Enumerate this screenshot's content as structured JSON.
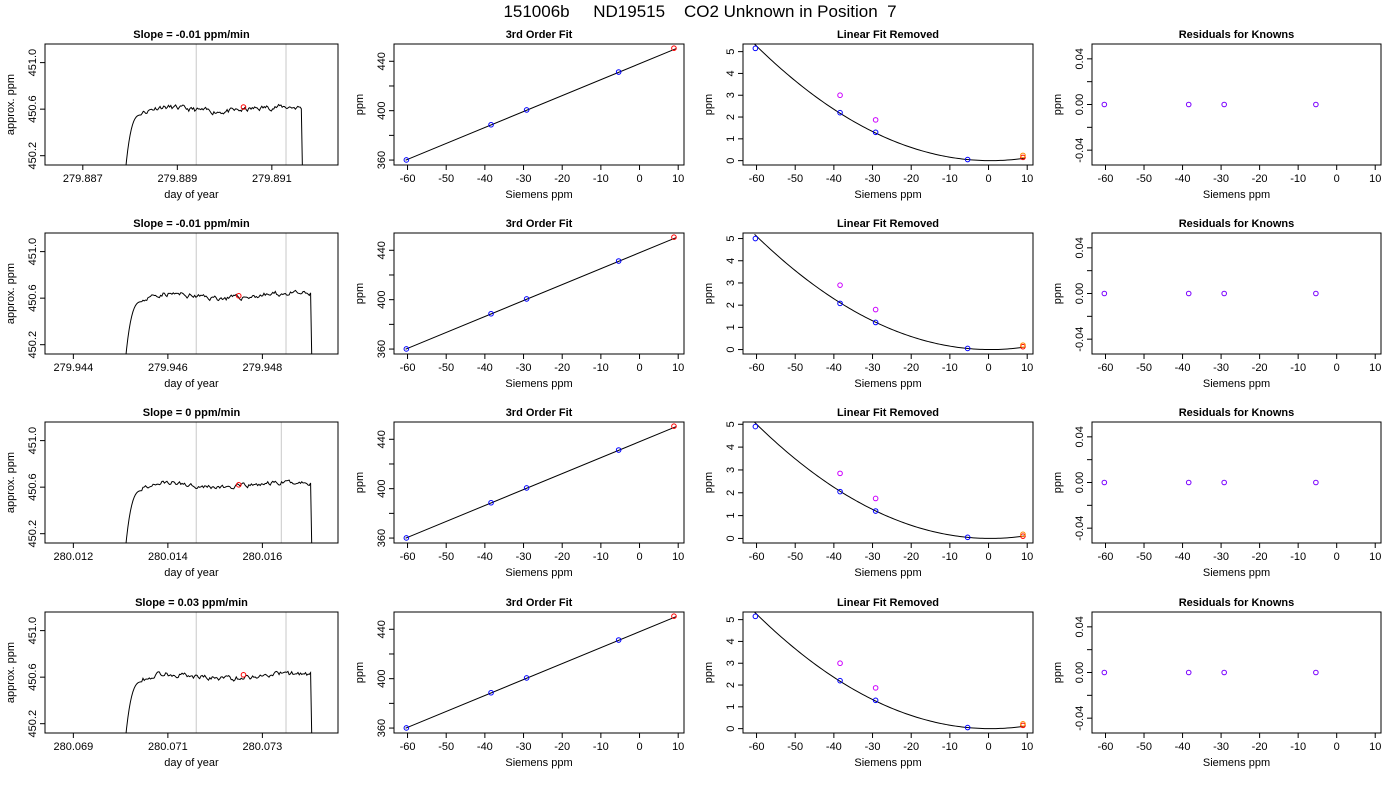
{
  "header": {
    "title": "151006b     ND19515    CO2 Unknown in Position  7"
  },
  "colors": {
    "trace": "#000000",
    "window_lines": "#c8c8c8",
    "standard_points": "#0000ff",
    "unknown_points": "#ff0000",
    "linear_removed_points": "#cc00ff",
    "unknown_linear_removed": "#ff8800",
    "residual_points": "#7a00ff"
  },
  "chart_data": [
    {
      "type": "line",
      "panel": "trace",
      "row": 1,
      "title": "Slope =  -0.01  ppm/min",
      "xlabel": "day of year",
      "ylabel": "approx. ppm",
      "xlim": [
        279.8862,
        279.8924
      ],
      "ylim": [
        450.12,
        451.16
      ],
      "xticks": [
        279.887,
        279.889,
        279.891
      ],
      "xtick_labels": [
        "279.887",
        "279.889",
        "279.891"
      ],
      "yticks": [
        450.2,
        450.6,
        451.0
      ],
      "ytick_labels": [
        "450.2",
        "450.6",
        "451.0"
      ],
      "window": [
        279.8894,
        279.8913
      ],
      "trace_start": 279.8879,
      "trace_end": 279.8917,
      "baseline": 450.6,
      "ripple": 0.024,
      "seed": 11,
      "marker": {
        "x": 279.8904,
        "y": 450.618
      }
    },
    {
      "type": "scatter",
      "panel": "fit",
      "row": 1,
      "title": "3rd Order Fit",
      "xlabel": "Siemens ppm",
      "ylabel": "ppm",
      "xlim": [
        -63.5,
        11.5
      ],
      "ylim": [
        356,
        454
      ],
      "xticks": [
        -60,
        -50,
        -40,
        -30,
        -20,
        -10,
        0,
        10
      ],
      "xtick_labels": [
        "-60",
        "-50",
        "-40",
        "-30",
        "-20",
        "-10",
        "0",
        "10"
      ],
      "yticks": [
        360,
        400,
        440
      ],
      "ytick_labels": [
        "360",
        "400",
        "440"
      ],
      "yminor": [
        380,
        420
      ],
      "line": [
        [
          -60.5,
          359.9
        ],
        [
          9.5,
          450.3
        ]
      ],
      "standards": [
        {
          "x": -60.3,
          "y": 360.1
        },
        {
          "x": -38.4,
          "y": 388.6
        },
        {
          "x": -29.2,
          "y": 400.6
        },
        {
          "x": -5.4,
          "y": 431.3
        }
      ],
      "unknown": {
        "x": 8.9,
        "y": 450.6
      }
    },
    {
      "type": "scatter",
      "panel": "linear",
      "row": 1,
      "title": "Linear Fit Removed",
      "xlabel": "Siemens ppm",
      "ylabel": "ppm",
      "xlim": [
        -63.5,
        11.5
      ],
      "ylim": [
        -0.2,
        5.35
      ],
      "xticks": [
        -60,
        -50,
        -40,
        -30,
        -20,
        -10,
        0,
        10
      ],
      "xtick_labels": [
        "-60",
        "-50",
        "-40",
        "-30",
        "-20",
        "-10",
        "0",
        "10"
      ],
      "yticks": [
        0,
        1,
        2,
        3,
        4,
        5
      ],
      "ytick_labels": [
        "0",
        "1",
        "2",
        "3",
        "4",
        "5"
      ],
      "curve_a": 0.001436,
      "curve_h": 0.5,
      "curve_min": 0,
      "standards": [
        {
          "x": -60.3,
          "y": 5.15
        },
        {
          "x": -38.4,
          "y": 2.2
        },
        {
          "x": -29.2,
          "y": 1.3
        },
        {
          "x": -5.4,
          "y": 0.05
        }
      ],
      "raw_points": [
        {
          "x": -38.4,
          "y": 3.0
        },
        {
          "x": -29.2,
          "y": 1.87
        }
      ],
      "unknown_points": [
        {
          "x": 8.9,
          "y": 0.15
        },
        {
          "x": 8.9,
          "y": 0.24
        }
      ]
    },
    {
      "type": "scatter",
      "panel": "residual",
      "row": 1,
      "title": "Residuals for Knowns",
      "xlabel": "Siemens ppm",
      "ylabel": "ppm",
      "xlim": [
        -63.5,
        11.5
      ],
      "ylim": [
        -0.053,
        0.053
      ],
      "xticks": [
        -60,
        -50,
        -40,
        -30,
        -20,
        -10,
        0,
        10
      ],
      "xtick_labels": [
        "-60",
        "-50",
        "-40",
        "-30",
        "-20",
        "-10",
        "0",
        "10"
      ],
      "yticks": [
        -0.04,
        0.0,
        0.04
      ],
      "ytick_labels": [
        "-0.04",
        "0.00",
        "0.04"
      ],
      "yminor": [
        -0.02,
        0.02
      ],
      "residuals": [
        {
          "x": -60.3,
          "y": 0.0
        },
        {
          "x": -38.4,
          "y": 0.0
        },
        {
          "x": -29.2,
          "y": 0.0
        },
        {
          "x": -5.4,
          "y": 0.0
        }
      ]
    },
    {
      "type": "line",
      "panel": "trace",
      "row": 2,
      "title": "Slope =  -0.01  ppm/min",
      "xlabel": "day of year",
      "ylabel": "approx. ppm",
      "xlim": [
        279.9434,
        279.9496
      ],
      "ylim": [
        450.12,
        451.16
      ],
      "xticks": [
        279.944,
        279.946,
        279.948
      ],
      "xtick_labels": [
        "279.944",
        "279.946",
        "279.948"
      ],
      "yticks": [
        450.2,
        450.6,
        451.0
      ],
      "ytick_labels": [
        "450.2",
        "450.6",
        "451.0"
      ],
      "window": [
        279.9466,
        279.9485
      ],
      "trace_start": 279.9451,
      "trace_end": 279.9491,
      "baseline": 450.62,
      "ripple": 0.024,
      "seed": 23,
      "marker": {
        "x": 279.9475,
        "y": 450.62
      }
    },
    {
      "type": "scatter",
      "panel": "fit",
      "row": 2,
      "title": "3rd Order Fit",
      "xlabel": "Siemens ppm",
      "ylabel": "ppm",
      "xlim": [
        -63.5,
        11.5
      ],
      "ylim": [
        356,
        454
      ],
      "xticks": [
        -60,
        -50,
        -40,
        -30,
        -20,
        -10,
        0,
        10
      ],
      "xtick_labels": [
        "-60",
        "-50",
        "-40",
        "-30",
        "-20",
        "-10",
        "0",
        "10"
      ],
      "yticks": [
        360,
        400,
        440
      ],
      "ytick_labels": [
        "360",
        "400",
        "440"
      ],
      "yminor": [
        380,
        420
      ],
      "line": [
        [
          -60.5,
          359.9
        ],
        [
          9.5,
          450.3
        ]
      ],
      "standards": [
        {
          "x": -60.3,
          "y": 360.1
        },
        {
          "x": -38.4,
          "y": 388.6
        },
        {
          "x": -29.2,
          "y": 400.6
        },
        {
          "x": -5.4,
          "y": 431.3
        }
      ],
      "unknown": {
        "x": 8.9,
        "y": 450.6
      }
    },
    {
      "type": "scatter",
      "panel": "linear",
      "row": 2,
      "title": "Linear Fit Removed",
      "xlabel": "Siemens ppm",
      "ylabel": "ppm",
      "xlim": [
        -63.5,
        11.5
      ],
      "ylim": [
        -0.2,
        5.25
      ],
      "xticks": [
        -60,
        -50,
        -40,
        -30,
        -20,
        -10,
        0,
        10
      ],
      "xtick_labels": [
        "-60",
        "-50",
        "-40",
        "-30",
        "-20",
        "-10",
        "0",
        "10"
      ],
      "yticks": [
        0,
        1,
        2,
        3,
        4,
        5
      ],
      "ytick_labels": [
        "0",
        "1",
        "2",
        "3",
        "4",
        "5"
      ],
      "curve_a": 0.001395,
      "curve_h": 0.5,
      "curve_min": 0,
      "standards": [
        {
          "x": -60.3,
          "y": 5.0
        },
        {
          "x": -38.4,
          "y": 2.08
        },
        {
          "x": -29.2,
          "y": 1.22
        },
        {
          "x": -5.4,
          "y": 0.05
        }
      ],
      "raw_points": [
        {
          "x": -38.4,
          "y": 2.9
        },
        {
          "x": -29.2,
          "y": 1.8
        }
      ],
      "unknown_points": [
        {
          "x": 8.9,
          "y": 0.13
        },
        {
          "x": 8.9,
          "y": 0.2
        }
      ]
    },
    {
      "type": "scatter",
      "panel": "residual",
      "row": 2,
      "title": "Residuals for Knowns",
      "xlabel": "Siemens ppm",
      "ylabel": "ppm",
      "xlim": [
        -63.5,
        11.5
      ],
      "ylim": [
        -0.053,
        0.053
      ],
      "xticks": [
        -60,
        -50,
        -40,
        -30,
        -20,
        -10,
        0,
        10
      ],
      "xtick_labels": [
        "-60",
        "-50",
        "-40",
        "-30",
        "-20",
        "-10",
        "0",
        "10"
      ],
      "yticks": [
        -0.04,
        0.0,
        0.04
      ],
      "ytick_labels": [
        "-0.04",
        "0.00",
        "0.04"
      ],
      "yminor": [
        -0.02,
        0.02
      ],
      "residuals": [
        {
          "x": -60.3,
          "y": 0.0
        },
        {
          "x": -38.4,
          "y": 0.0
        },
        {
          "x": -29.2,
          "y": 0.0
        },
        {
          "x": -5.4,
          "y": 0.0
        }
      ]
    },
    {
      "type": "line",
      "panel": "trace",
      "row": 3,
      "title": "Slope =  0  ppm/min",
      "xlabel": "day of year",
      "ylabel": "approx. ppm",
      "xlim": [
        280.0114,
        280.0176
      ],
      "ylim": [
        450.12,
        451.16
      ],
      "xticks": [
        280.012,
        280.014,
        280.016
      ],
      "xtick_labels": [
        "280.012",
        "280.014",
        "280.016"
      ],
      "yticks": [
        450.2,
        450.6,
        451.0
      ],
      "ytick_labels": [
        "450.2",
        "450.6",
        "451.0"
      ],
      "window": [
        280.0146,
        280.0164
      ],
      "trace_start": 280.0131,
      "trace_end": 280.0171,
      "baseline": 450.62,
      "ripple": 0.022,
      "seed": 37,
      "marker": {
        "x": 280.0155,
        "y": 450.62
      }
    },
    {
      "type": "scatter",
      "panel": "fit",
      "row": 3,
      "title": "3rd Order Fit",
      "xlabel": "Siemens ppm",
      "ylabel": "ppm",
      "xlim": [
        -63.5,
        11.5
      ],
      "ylim": [
        356,
        454
      ],
      "xticks": [
        -60,
        -50,
        -40,
        -30,
        -20,
        -10,
        0,
        10
      ],
      "xtick_labels": [
        "-60",
        "-50",
        "-40",
        "-30",
        "-20",
        "-10",
        "0",
        "10"
      ],
      "yticks": [
        360,
        400,
        440
      ],
      "ytick_labels": [
        "360",
        "400",
        "440"
      ],
      "yminor": [
        380,
        420
      ],
      "line": [
        [
          -60.5,
          359.9
        ],
        [
          9.5,
          450.3
        ]
      ],
      "standards": [
        {
          "x": -60.3,
          "y": 360.1
        },
        {
          "x": -38.4,
          "y": 388.6
        },
        {
          "x": -29.2,
          "y": 400.6
        },
        {
          "x": -5.4,
          "y": 431.3
        }
      ],
      "unknown": {
        "x": 8.9,
        "y": 450.6
      }
    },
    {
      "type": "scatter",
      "panel": "linear",
      "row": 3,
      "title": "Linear Fit Removed",
      "xlabel": "Siemens ppm",
      "ylabel": "ppm",
      "xlim": [
        -63.5,
        11.5
      ],
      "ylim": [
        -0.2,
        5.1
      ],
      "xticks": [
        -60,
        -50,
        -40,
        -30,
        -20,
        -10,
        0,
        10
      ],
      "xtick_labels": [
        "-60",
        "-50",
        "-40",
        "-30",
        "-20",
        "-10",
        "0",
        "10"
      ],
      "yticks": [
        0,
        1,
        2,
        3,
        4,
        5
      ],
      "ytick_labels": [
        "0",
        "1",
        "2",
        "3",
        "4",
        "5"
      ],
      "curve_a": 0.001367,
      "curve_h": 0.5,
      "curve_min": 0,
      "standards": [
        {
          "x": -60.3,
          "y": 4.9
        },
        {
          "x": -38.4,
          "y": 2.05
        },
        {
          "x": -29.2,
          "y": 1.2
        },
        {
          "x": -5.4,
          "y": 0.05
        }
      ],
      "raw_points": [
        {
          "x": -38.4,
          "y": 2.85
        },
        {
          "x": -29.2,
          "y": 1.75
        }
      ],
      "unknown_points": [
        {
          "x": 8.9,
          "y": 0.1
        },
        {
          "x": 8.9,
          "y": 0.18
        }
      ]
    },
    {
      "type": "scatter",
      "panel": "residual",
      "row": 3,
      "title": "Residuals for Knowns",
      "xlabel": "Siemens ppm",
      "ylabel": "ppm",
      "xlim": [
        -63.5,
        11.5
      ],
      "ylim": [
        -0.053,
        0.053
      ],
      "xticks": [
        -60,
        -50,
        -40,
        -30,
        -20,
        -10,
        0,
        10
      ],
      "xtick_labels": [
        "-60",
        "-50",
        "-40",
        "-30",
        "-20",
        "-10",
        "0",
        "10"
      ],
      "yticks": [
        -0.04,
        0.0,
        0.04
      ],
      "ytick_labels": [
        "-0.04",
        "0.00",
        "0.04"
      ],
      "yminor": [
        -0.02,
        0.02
      ],
      "residuals": [
        {
          "x": -60.3,
          "y": 0.0
        },
        {
          "x": -38.4,
          "y": 0.0
        },
        {
          "x": -29.2,
          "y": 0.0
        },
        {
          "x": -5.4,
          "y": 0.0
        }
      ]
    },
    {
      "type": "line",
      "panel": "trace",
      "row": 4,
      "title": "Slope =  0.03  ppm/min",
      "xlabel": "day of year",
      "ylabel": "approx. ppm",
      "xlim": [
        280.0684,
        280.0746
      ],
      "ylim": [
        450.12,
        451.16
      ],
      "xticks": [
        280.069,
        280.071,
        280.073
      ],
      "xtick_labels": [
        "280.069",
        "280.071",
        "280.073"
      ],
      "yticks": [
        450.2,
        450.6,
        451.0
      ],
      "ytick_labels": [
        "450.2",
        "450.6",
        "451.0"
      ],
      "window": [
        280.0716,
        280.0735
      ],
      "trace_start": 280.0701,
      "trace_end": 280.0741,
      "baseline": 450.61,
      "ripple": 0.024,
      "seed": 53,
      "marker": {
        "x": 280.0726,
        "y": 450.62
      }
    },
    {
      "type": "scatter",
      "panel": "fit",
      "row": 4,
      "title": "3rd Order Fit",
      "xlabel": "Siemens ppm",
      "ylabel": "ppm",
      "xlim": [
        -63.5,
        11.5
      ],
      "ylim": [
        356,
        454
      ],
      "xticks": [
        -60,
        -50,
        -40,
        -30,
        -20,
        -10,
        0,
        10
      ],
      "xtick_labels": [
        "-60",
        "-50",
        "-40",
        "-30",
        "-20",
        "-10",
        "0",
        "10"
      ],
      "yticks": [
        360,
        400,
        440
      ],
      "ytick_labels": [
        "360",
        "400",
        "440"
      ],
      "yminor": [
        380,
        420
      ],
      "line": [
        [
          -60.5,
          359.9
        ],
        [
          9.5,
          450.3
        ]
      ],
      "standards": [
        {
          "x": -60.3,
          "y": 360.1
        },
        {
          "x": -38.4,
          "y": 388.6
        },
        {
          "x": -29.2,
          "y": 400.6
        },
        {
          "x": -5.4,
          "y": 431.3
        }
      ],
      "unknown": {
        "x": 8.9,
        "y": 450.6
      }
    },
    {
      "type": "scatter",
      "panel": "linear",
      "row": 4,
      "title": "Linear Fit Removed",
      "xlabel": "Siemens ppm",
      "ylabel": "ppm",
      "xlim": [
        -63.5,
        11.5
      ],
      "ylim": [
        -0.2,
        5.35
      ],
      "xticks": [
        -60,
        -50,
        -40,
        -30,
        -20,
        -10,
        0,
        10
      ],
      "xtick_labels": [
        "-60",
        "-50",
        "-40",
        "-30",
        "-20",
        "-10",
        "0",
        "10"
      ],
      "yticks": [
        0,
        1,
        2,
        3,
        4,
        5
      ],
      "ytick_labels": [
        "0",
        "1",
        "2",
        "3",
        "4",
        "5"
      ],
      "curve_a": 0.001436,
      "curve_h": 0.5,
      "curve_min": 0,
      "standards": [
        {
          "x": -60.3,
          "y": 5.15
        },
        {
          "x": -38.4,
          "y": 2.2
        },
        {
          "x": -29.2,
          "y": 1.3
        },
        {
          "x": -5.4,
          "y": 0.05
        }
      ],
      "raw_points": [
        {
          "x": -38.4,
          "y": 3.0
        },
        {
          "x": -29.2,
          "y": 1.87
        }
      ],
      "unknown_points": [
        {
          "x": 8.9,
          "y": 0.15
        },
        {
          "x": 8.9,
          "y": 0.22
        }
      ]
    },
    {
      "type": "scatter",
      "panel": "residual",
      "row": 4,
      "title": "Residuals for Knowns",
      "xlabel": "Siemens ppm",
      "ylabel": "ppm",
      "xlim": [
        -63.5,
        11.5
      ],
      "ylim": [
        -0.053,
        0.053
      ],
      "xticks": [
        -60,
        -50,
        -40,
        -30,
        -20,
        -10,
        0,
        10
      ],
      "xtick_labels": [
        "-60",
        "-50",
        "-40",
        "-30",
        "-20",
        "-10",
        "0",
        "10"
      ],
      "yticks": [
        -0.04,
        0.0,
        0.04
      ],
      "ytick_labels": [
        "-0.04",
        "0.00",
        "0.04"
      ],
      "yminor": [
        -0.02,
        0.02
      ],
      "residuals": [
        {
          "x": -60.3,
          "y": 0.0
        },
        {
          "x": -38.4,
          "y": 0.0
        },
        {
          "x": -29.2,
          "y": 0.0
        },
        {
          "x": -5.4,
          "y": 0.0
        }
      ]
    }
  ]
}
